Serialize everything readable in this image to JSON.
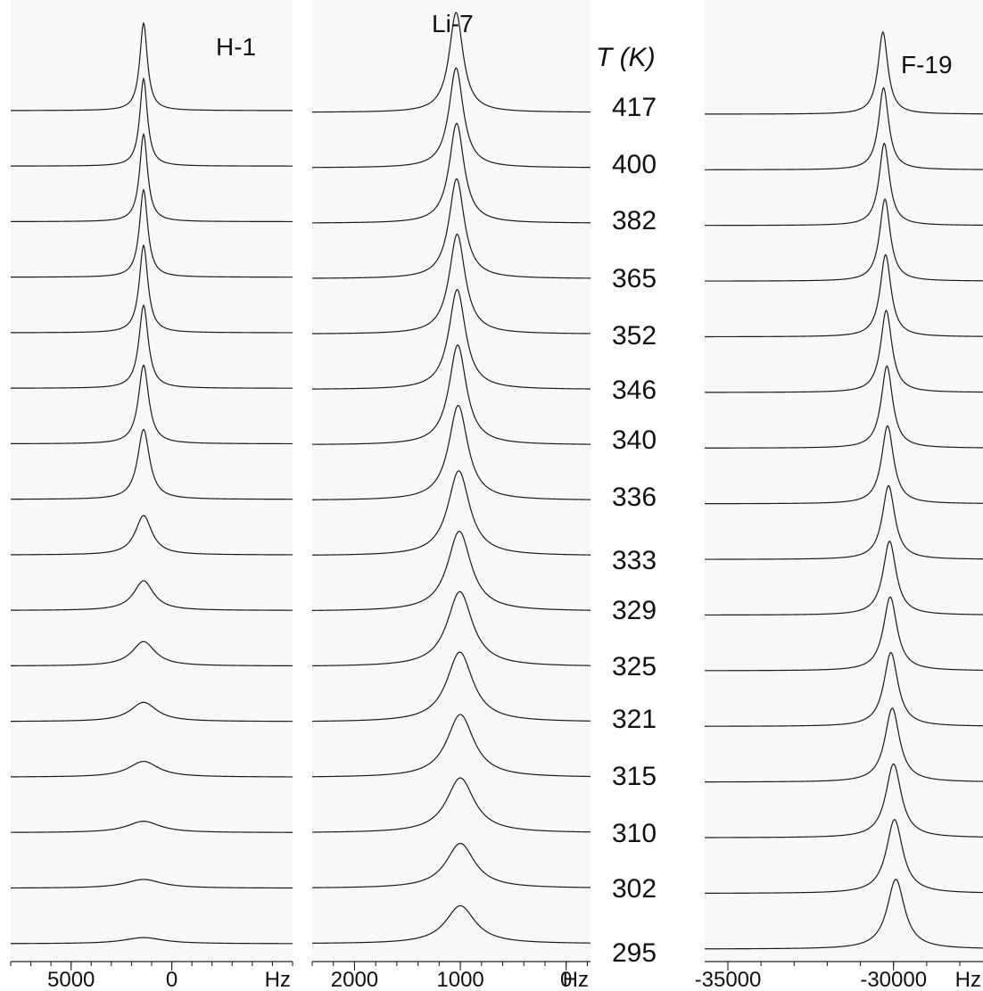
{
  "chart_data": [
    {
      "type": "line",
      "title": "H-1",
      "xlabel": "Hz",
      "x_reversed": true,
      "xlim": [
        8000,
        -6000
      ],
      "tick_labels": [
        "5000",
        "0",
        "Hz"
      ],
      "tick_values": [
        5000,
        0
      ],
      "series": [
        {
          "temperature": 417,
          "peak_hz": 1400,
          "width_hz": 230,
          "height": 1.0
        },
        {
          "temperature": 400,
          "peak_hz": 1400,
          "width_hz": 230,
          "height": 1.0
        },
        {
          "temperature": 382,
          "peak_hz": 1400,
          "width_hz": 240,
          "height": 1.0
        },
        {
          "temperature": 365,
          "peak_hz": 1400,
          "width_hz": 250,
          "height": 1.0
        },
        {
          "temperature": 352,
          "peak_hz": 1400,
          "width_hz": 260,
          "height": 1.0
        },
        {
          "temperature": 346,
          "peak_hz": 1400,
          "width_hz": 280,
          "height": 0.95
        },
        {
          "temperature": 340,
          "peak_hz": 1400,
          "width_hz": 310,
          "height": 0.9
        },
        {
          "temperature": 336,
          "peak_hz": 1400,
          "width_hz": 360,
          "height": 0.8
        },
        {
          "temperature": 333,
          "peak_hz": 1400,
          "width_hz": 500,
          "height": 0.45
        },
        {
          "temperature": 329,
          "peak_hz": 1400,
          "width_hz": 600,
          "height": 0.34
        },
        {
          "temperature": 325,
          "peak_hz": 1400,
          "width_hz": 700,
          "height": 0.28
        },
        {
          "temperature": 321,
          "peak_hz": 1400,
          "width_hz": 800,
          "height": 0.22
        },
        {
          "temperature": 315,
          "peak_hz": 1400,
          "width_hz": 900,
          "height": 0.18
        },
        {
          "temperature": 310,
          "peak_hz": 1400,
          "width_hz": 1000,
          "height": 0.13
        },
        {
          "temperature": 302,
          "peak_hz": 1400,
          "width_hz": 1100,
          "height": 0.1
        },
        {
          "temperature": 295,
          "peak_hz": 1400,
          "width_hz": 1200,
          "height": 0.07
        }
      ]
    },
    {
      "type": "line",
      "title": "Li-7",
      "xlabel": "Hz",
      "x_reversed": true,
      "xlim": [
        2400,
        -230
      ],
      "tick_labels": [
        "2000",
        "1000",
        "0",
        "Hz"
      ],
      "tick_values": [
        2000,
        1000,
        0
      ],
      "series": [
        {
          "temperature": 417,
          "peak_hz": 1040,
          "width_hz": 80,
          "height": 1.0
        },
        {
          "temperature": 400,
          "peak_hz": 1040,
          "width_hz": 82,
          "height": 1.0
        },
        {
          "temperature": 382,
          "peak_hz": 1035,
          "width_hz": 85,
          "height": 1.0
        },
        {
          "temperature": 365,
          "peak_hz": 1035,
          "width_hz": 88,
          "height": 1.0
        },
        {
          "temperature": 352,
          "peak_hz": 1030,
          "width_hz": 92,
          "height": 1.0
        },
        {
          "temperature": 346,
          "peak_hz": 1030,
          "width_hz": 96,
          "height": 1.0
        },
        {
          "temperature": 340,
          "peak_hz": 1025,
          "width_hz": 100,
          "height": 1.0
        },
        {
          "temperature": 336,
          "peak_hz": 1020,
          "width_hz": 110,
          "height": 0.95
        },
        {
          "temperature": 333,
          "peak_hz": 1015,
          "width_hz": 125,
          "height": 0.85
        },
        {
          "temperature": 329,
          "peak_hz": 1010,
          "width_hz": 135,
          "height": 0.8
        },
        {
          "temperature": 325,
          "peak_hz": 1005,
          "width_hz": 145,
          "height": 0.75
        },
        {
          "temperature": 321,
          "peak_hz": 1005,
          "width_hz": 150,
          "height": 0.7
        },
        {
          "temperature": 315,
          "peak_hz": 1000,
          "width_hz": 155,
          "height": 0.63
        },
        {
          "temperature": 310,
          "peak_hz": 1000,
          "width_hz": 160,
          "height": 0.55
        },
        {
          "temperature": 302,
          "peak_hz": 1000,
          "width_hz": 165,
          "height": 0.45
        },
        {
          "temperature": 295,
          "peak_hz": 1000,
          "width_hz": 170,
          "height": 0.38
        }
      ]
    },
    {
      "type": "line",
      "title": "F-19",
      "xlabel": "Hz",
      "x_reversed": true,
      "xlim": [
        -35700,
        -27300
      ],
      "tick_labels": [
        "-35000",
        "-30000",
        "Hz"
      ],
      "tick_values": [
        -35000,
        -30000
      ],
      "series": [
        {
          "temperature": 417,
          "peak_hz": -30320,
          "width_hz": 180,
          "height": 1.0
        },
        {
          "temperature": 400,
          "peak_hz": -30300,
          "width_hz": 185,
          "height": 1.0
        },
        {
          "temperature": 382,
          "peak_hz": -30280,
          "width_hz": 190,
          "height": 1.0
        },
        {
          "temperature": 365,
          "peak_hz": -30260,
          "width_hz": 195,
          "height": 1.0
        },
        {
          "temperature": 352,
          "peak_hz": -30240,
          "width_hz": 200,
          "height": 1.0
        },
        {
          "temperature": 346,
          "peak_hz": -30220,
          "width_hz": 205,
          "height": 1.0
        },
        {
          "temperature": 340,
          "peak_hz": -30200,
          "width_hz": 210,
          "height": 1.0
        },
        {
          "temperature": 336,
          "peak_hz": -30180,
          "width_hz": 220,
          "height": 0.95
        },
        {
          "temperature": 333,
          "peak_hz": -30150,
          "width_hz": 230,
          "height": 0.9
        },
        {
          "temperature": 329,
          "peak_hz": -30120,
          "width_hz": 240,
          "height": 0.9
        },
        {
          "temperature": 325,
          "peak_hz": -30100,
          "width_hz": 250,
          "height": 0.9
        },
        {
          "temperature": 321,
          "peak_hz": -30080,
          "width_hz": 260,
          "height": 0.9
        },
        {
          "temperature": 315,
          "peak_hz": -30040,
          "width_hz": 270,
          "height": 0.9
        },
        {
          "temperature": 310,
          "peak_hz": -30000,
          "width_hz": 285,
          "height": 0.9
        },
        {
          "temperature": 302,
          "peak_hz": -29970,
          "width_hz": 300,
          "height": 0.9
        },
        {
          "temperature": 295,
          "peak_hz": -29930,
          "width_hz": 320,
          "height": 0.85
        }
      ]
    }
  ],
  "temperature_axis": {
    "header": "T (K)",
    "values": [
      "417",
      "400",
      "382",
      "365",
      "352",
      "346",
      "340",
      "336",
      "333",
      "329",
      "325",
      "321",
      "315",
      "310",
      "302",
      "295"
    ]
  },
  "colors": {
    "trace": "#1a1a1a",
    "panel_background": "#f8f8f8",
    "text": "#111111"
  }
}
